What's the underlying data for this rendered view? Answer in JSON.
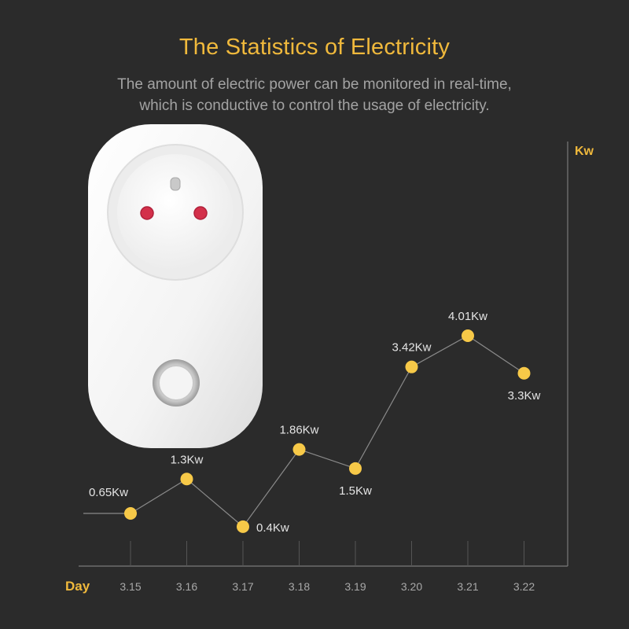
{
  "header": {
    "title": "The Statistics of Electricity",
    "subtitle_line1": "The amount of electric power can be monitored in real-time,",
    "subtitle_line2": "which is conductive to control the usage of electricity."
  },
  "product": {
    "icon": "smart-plug-icon"
  },
  "colors": {
    "background": "#2b2b2b",
    "accent": "#f0b93c",
    "point": "#f7c948",
    "line": "#8a8a8a",
    "axis": "#7a7a7a",
    "text": "#e4e4e4",
    "tick": "#a8a8a8"
  },
  "chart_data": {
    "type": "line",
    "title": "The Statistics of Electricity",
    "xlabel": "Day",
    "ylabel": "Kw",
    "categories": [
      "3.15",
      "3.16",
      "3.17",
      "3.18",
      "3.19",
      "3.20",
      "3.21",
      "3.22"
    ],
    "values": [
      0.65,
      1.3,
      0.4,
      1.86,
      1.5,
      3.42,
      4.01,
      3.3
    ],
    "labels": [
      "0.65Kw",
      "1.3Kw",
      "0.4Kw",
      "1.86Kw",
      "1.5Kw",
      "3.42Kw",
      "4.01Kw",
      "3.3Kw"
    ],
    "label_positions": [
      "left",
      "above",
      "right",
      "above",
      "below",
      "above",
      "above",
      "below"
    ],
    "ylim": [
      0,
      5
    ],
    "grid": false
  }
}
